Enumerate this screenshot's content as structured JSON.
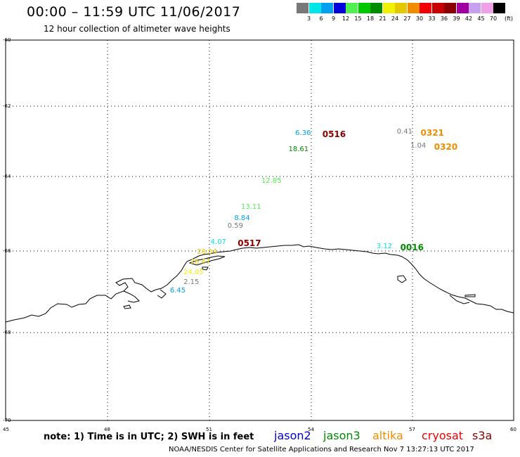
{
  "header": {
    "title": "00:00 – 11:59 UTC 11/06/2017",
    "subtitle": "12 hour collection of altimeter wave heights"
  },
  "legend": {
    "unit_label": "(ft)",
    "items": [
      {
        "label": "3",
        "color": "#787878"
      },
      {
        "label": "6",
        "color": "#00e6e6"
      },
      {
        "label": "9",
        "color": "#00a0f0"
      },
      {
        "label": "12",
        "color": "#0000dc"
      },
      {
        "label": "15",
        "color": "#50f050"
      },
      {
        "label": "18",
        "color": "#00c800"
      },
      {
        "label": "21",
        "color": "#008c00"
      },
      {
        "label": "24",
        "color": "#f0f000"
      },
      {
        "label": "27",
        "color": "#e6c800"
      },
      {
        "label": "30",
        "color": "#f08c00"
      },
      {
        "label": "33",
        "color": "#f00000"
      },
      {
        "label": "36",
        "color": "#c80000"
      },
      {
        "label": "39",
        "color": "#8c0000"
      },
      {
        "label": "42",
        "color": "#a000a0"
      },
      {
        "label": "45",
        "color": "#c8a0f0"
      },
      {
        "label": "70",
        "color": "#f0a0e6"
      },
      {
        "label": "",
        "color": "#000000"
      }
    ]
  },
  "axes": {
    "lat_labels": [
      "-60",
      "-62",
      "-64",
      "-66",
      "-68",
      "-70"
    ],
    "lon_labels": [
      "45",
      "48",
      "51",
      "54",
      "57",
      "60"
    ]
  },
  "observations": [
    {
      "text": "6.36",
      "color": "#00a0f0",
      "lon": 53.8,
      "lat": -62.8
    },
    {
      "text": "0516",
      "color": "#8c0000",
      "lon": 54.6,
      "lat": -62.8,
      "kind": "time"
    },
    {
      "text": "18.61",
      "color": "#008c00",
      "lon": 53.6,
      "lat": -63.25
    },
    {
      "text": "12.85",
      "color": "#50f050",
      "lon": 52.8,
      "lat": -64.15
    },
    {
      "text": "13.11",
      "color": "#50f050",
      "lon": 52.2,
      "lat": -64.85
    },
    {
      "text": "8.84",
      "color": "#00a0f0",
      "lon": 52.0,
      "lat": -65.15
    },
    {
      "text": "0.59",
      "color": "#787878",
      "lon": 51.8,
      "lat": -65.35
    },
    {
      "text": "4.07",
      "color": "#00e6e6",
      "lon": 51.3,
      "lat": -65.8
    },
    {
      "text": "0517",
      "color": "#8c0000",
      "lon": 52.1,
      "lat": -65.8,
      "kind": "time"
    },
    {
      "text": "28.04",
      "color": "#e6c800",
      "lon": 50.9,
      "lat": -66.05
    },
    {
      "text": "26.67",
      "color": "#e6c800",
      "lon": 50.7,
      "lat": -66.3
    },
    {
      "text": "24.05",
      "color": "#f0f000",
      "lon": 50.5,
      "lat": -66.55
    },
    {
      "text": "2.15",
      "color": "#787878",
      "lon": 50.5,
      "lat": -66.8
    },
    {
      "text": "6.45",
      "color": "#00a0f0",
      "lon": 50.1,
      "lat": -67.0
    },
    {
      "text": "3.12",
      "color": "#00e6e6",
      "lon": 56.2,
      "lat": -65.9
    },
    {
      "text": "0016",
      "color": "#008c00",
      "lon": 56.9,
      "lat": -65.9,
      "kind": "time"
    },
    {
      "text": "0.41",
      "color": "#787878",
      "lon": 56.8,
      "lat": -62.75
    },
    {
      "text": "0321",
      "color": "#f08c00",
      "lon": 57.5,
      "lat": -62.75,
      "kind": "time"
    },
    {
      "text": "1.04",
      "color": "#787878",
      "lon": 57.2,
      "lat": -63.15
    },
    {
      "text": "0320",
      "color": "#f08c00",
      "lon": 57.9,
      "lat": -63.15,
      "kind": "time"
    }
  ],
  "footer": {
    "note": "note:  1) Time is in UTC;  2) SWH is in feet",
    "satellites": [
      {
        "name": "jason2",
        "color": "#0000dc"
      },
      {
        "name": "jason3",
        "color": "#008c00"
      },
      {
        "name": "altika",
        "color": "#f08c00"
      },
      {
        "name": "cryosat",
        "color": "#f00000"
      },
      {
        "name": "s3a",
        "color": "#8c0000"
      }
    ],
    "credit": "NOAA/NESDIS Center for Satellite Applications and Research    Nov  7 13:27:13 UTC 2017"
  }
}
